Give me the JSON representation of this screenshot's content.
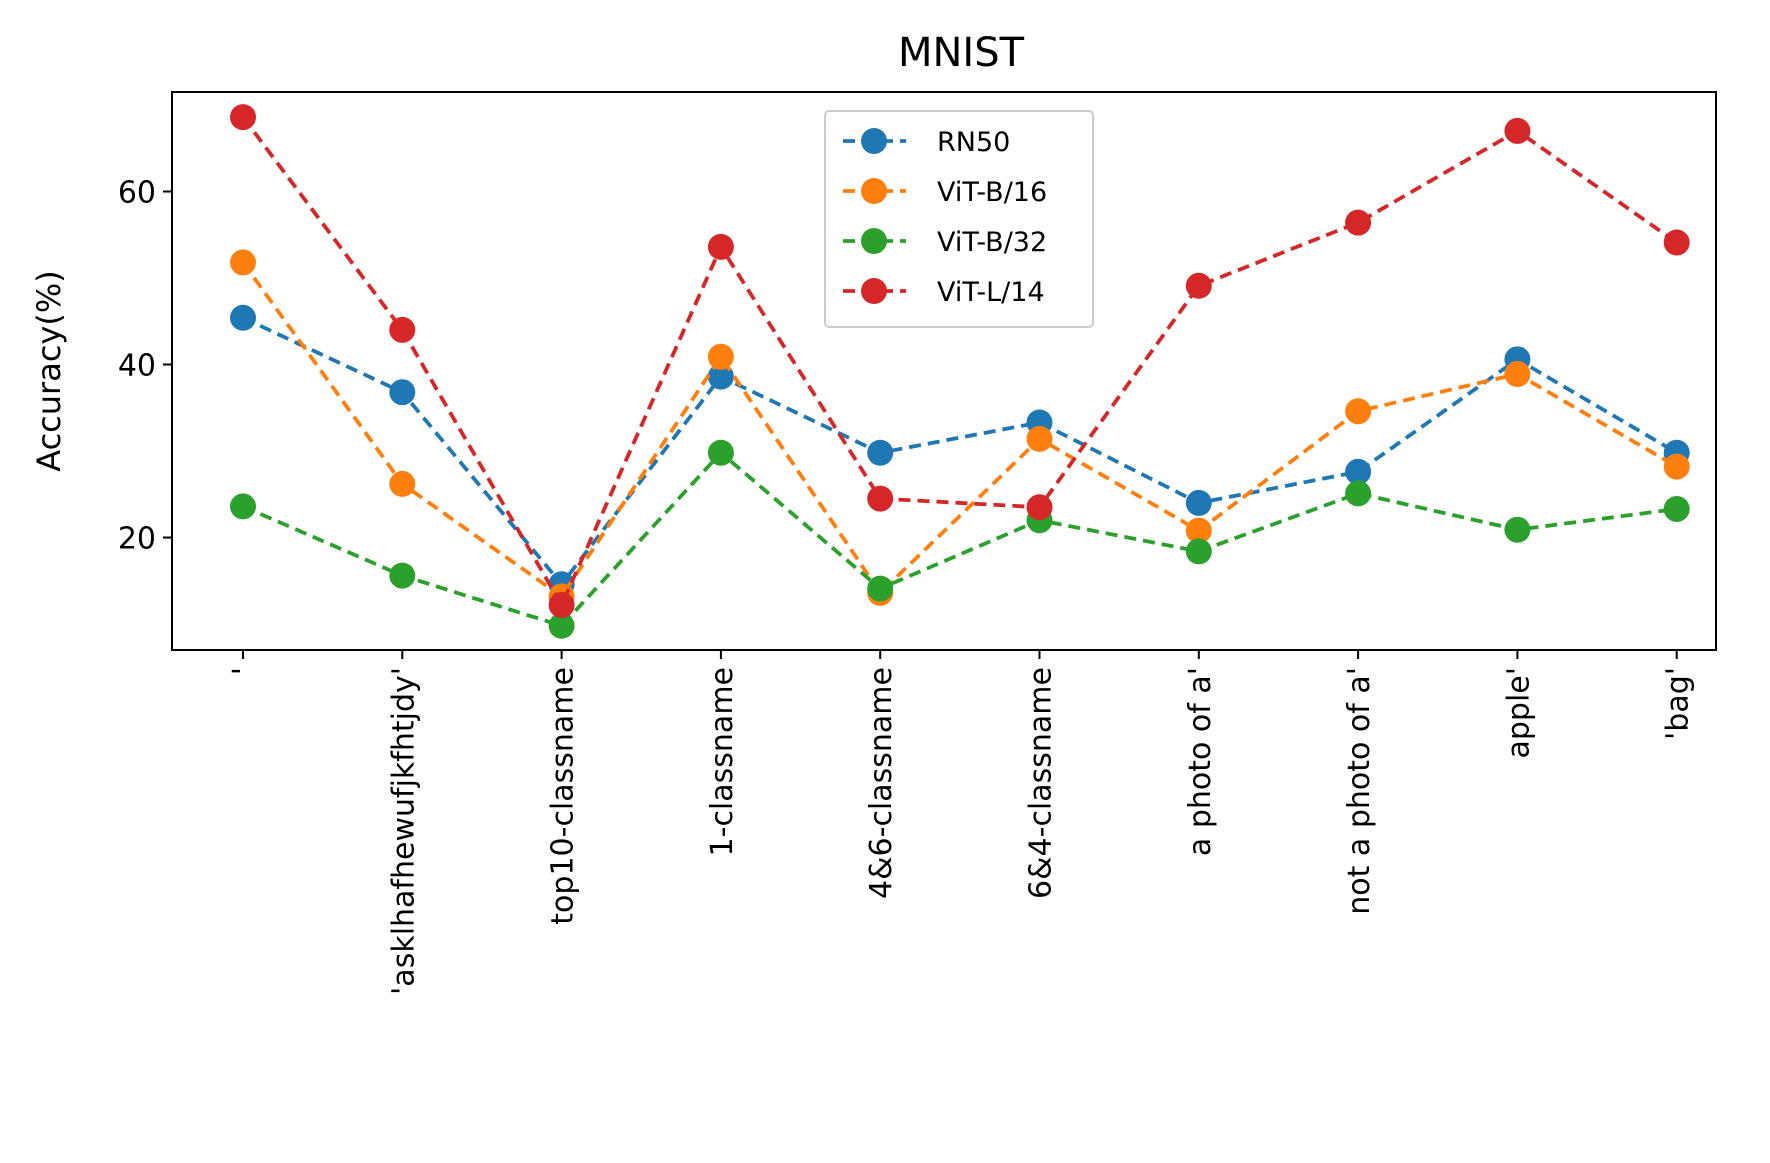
{
  "chart_data": {
    "type": "line",
    "title": "MNIST",
    "ylabel": "Accuracy(%)",
    "xlabel": "",
    "categories": [
      "'",
      "'asklhafhewufjkfhtjdy'",
      "top10-classname",
      "1-classname",
      "4&6-classname",
      "6&4-classname",
      "a photo of a'",
      "not a photo of a'",
      "apple'",
      "'bag'"
    ],
    "ylim": [
      7.0,
      71.5
    ],
    "yticks": [
      20,
      40,
      60
    ],
    "grid": false,
    "legend_position": "top-center",
    "series": [
      {
        "name": "RN50",
        "color": "#1f77b4",
        "values": [
          45.4,
          36.8,
          14.6,
          38.6,
          29.8,
          33.3,
          24.0,
          27.6,
          40.6,
          29.8
        ]
      },
      {
        "name": "ViT-B/16",
        "color": "#ff7f0e",
        "values": [
          51.8,
          26.2,
          13.2,
          40.9,
          13.6,
          31.4,
          20.8,
          34.6,
          38.9,
          28.2
        ]
      },
      {
        "name": "ViT-B/32",
        "color": "#2ca02c",
        "values": [
          23.6,
          15.6,
          9.8,
          29.8,
          14.1,
          22.0,
          18.4,
          25.1,
          20.9,
          23.3
        ]
      },
      {
        "name": "ViT-L/14",
        "color": "#d62728",
        "values": [
          68.6,
          44.0,
          12.2,
          53.6,
          24.5,
          23.5,
          49.1,
          56.4,
          67.0,
          54.1
        ]
      }
    ]
  }
}
